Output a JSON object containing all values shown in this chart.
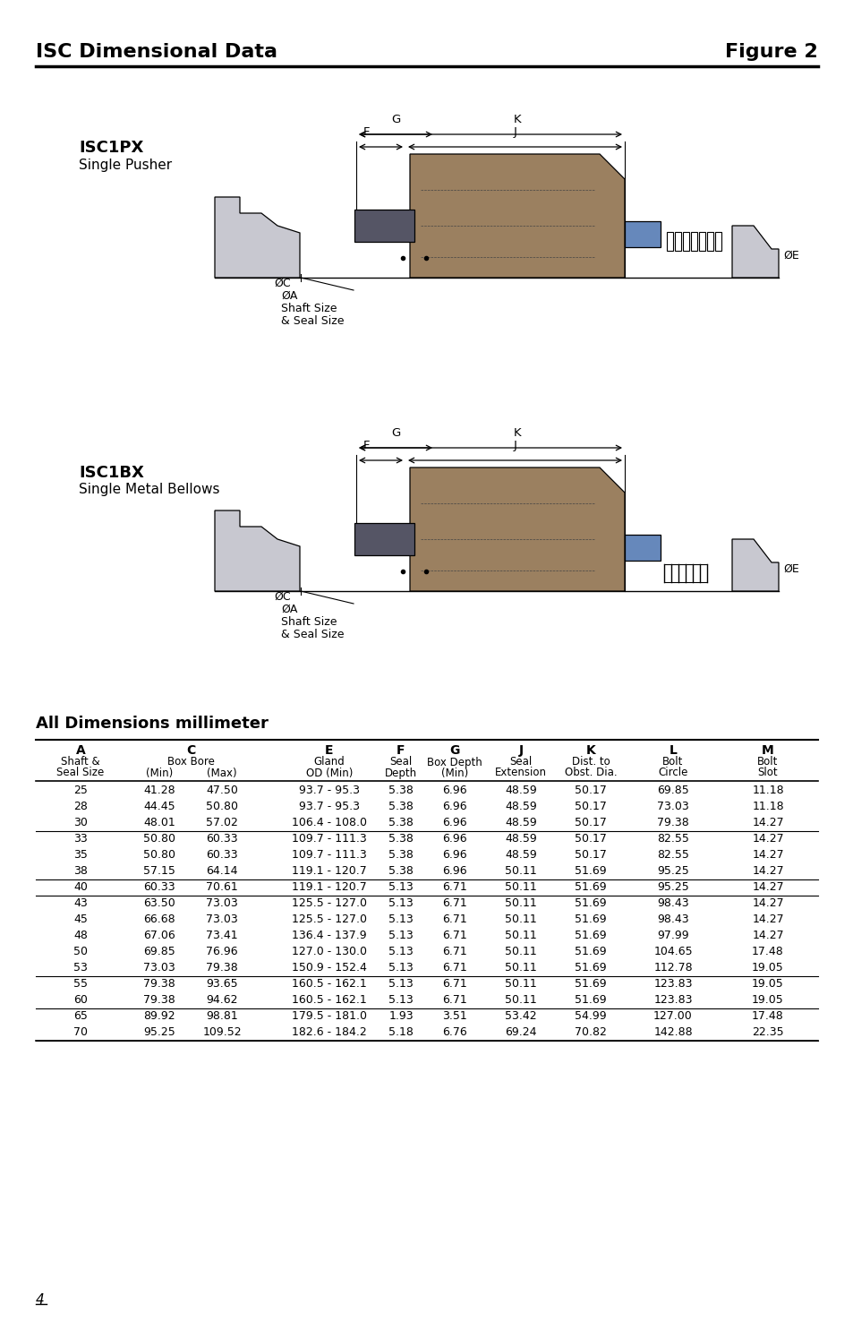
{
  "title_left": "ISC Dimensional Data",
  "title_right": "Figure 2",
  "diagram1_label": "ISC1PX",
  "diagram1_sublabel": "Single Pusher",
  "diagram2_label": "ISC1BX",
  "diagram2_sublabel": "Single Metal Bellows",
  "dim_title": "All Dimensions millimeter",
  "table_data": [
    [
      "25",
      "41.28",
      "47.50",
      "93.7 - 95.3",
      "5.38",
      "6.96",
      "48.59",
      "50.17",
      "69.85",
      "11.18"
    ],
    [
      "28",
      "44.45",
      "50.80",
      "93.7 - 95.3",
      "5.38",
      "6.96",
      "48.59",
      "50.17",
      "73.03",
      "11.18"
    ],
    [
      "30",
      "48.01",
      "57.02",
      "106.4 - 108.0",
      "5.38",
      "6.96",
      "48.59",
      "50.17",
      "79.38",
      "14.27"
    ],
    [
      "33",
      "50.80",
      "60.33",
      "109.7 - 111.3",
      "5.38",
      "6.96",
      "48.59",
      "50.17",
      "82.55",
      "14.27"
    ],
    [
      "35",
      "50.80",
      "60.33",
      "109.7 - 111.3",
      "5.38",
      "6.96",
      "48.59",
      "50.17",
      "82.55",
      "14.27"
    ],
    [
      "38",
      "57.15",
      "64.14",
      "119.1 - 120.7",
      "5.38",
      "6.96",
      "50.11",
      "51.69",
      "95.25",
      "14.27"
    ],
    [
      "40",
      "60.33",
      "70.61",
      "119.1 - 120.7",
      "5.13",
      "6.71",
      "50.11",
      "51.69",
      "95.25",
      "14.27"
    ],
    [
      "43",
      "63.50",
      "73.03",
      "125.5 - 127.0",
      "5.13",
      "6.71",
      "50.11",
      "51.69",
      "98.43",
      "14.27"
    ],
    [
      "45",
      "66.68",
      "73.03",
      "125.5 - 127.0",
      "5.13",
      "6.71",
      "50.11",
      "51.69",
      "98.43",
      "14.27"
    ],
    [
      "48",
      "67.06",
      "73.41",
      "136.4 - 137.9",
      "5.13",
      "6.71",
      "50.11",
      "51.69",
      "97.99",
      "14.27"
    ],
    [
      "50",
      "69.85",
      "76.96",
      "127.0 - 130.0",
      "5.13",
      "6.71",
      "50.11",
      "51.69",
      "104.65",
      "17.48"
    ],
    [
      "53",
      "73.03",
      "79.38",
      "150.9 - 152.4",
      "5.13",
      "6.71",
      "50.11",
      "51.69",
      "112.78",
      "19.05"
    ],
    [
      "55",
      "79.38",
      "93.65",
      "160.5 - 162.1",
      "5.13",
      "6.71",
      "50.11",
      "51.69",
      "123.83",
      "19.05"
    ],
    [
      "60",
      "79.38",
      "94.62",
      "160.5 - 162.1",
      "5.13",
      "6.71",
      "50.11",
      "51.69",
      "123.83",
      "19.05"
    ],
    [
      "65",
      "89.92",
      "98.81",
      "179.5 - 181.0",
      "1.93",
      "3.51",
      "53.42",
      "54.99",
      "127.00",
      "17.48"
    ],
    [
      "70",
      "95.25",
      "109.52",
      "182.6 - 184.2",
      "5.18",
      "6.76",
      "69.24",
      "70.82",
      "142.88",
      "22.35"
    ]
  ],
  "group_lines_after": [
    2,
    5,
    6,
    11,
    13,
    15
  ],
  "page_num": "4",
  "bg_color": "#ffffff"
}
